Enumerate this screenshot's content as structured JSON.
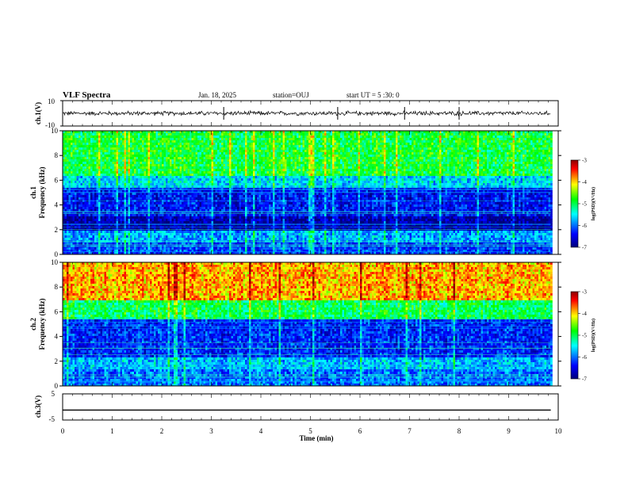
{
  "header": {
    "title": "VLF Spectra",
    "date": "Jan. 18, 2025",
    "station": "station=OUJ",
    "start": "start UT = 5 :30: 0"
  },
  "colors": {
    "spectrum_stops": [
      "#00007a",
      "#0000ff",
      "#00ffff",
      "#00ff00",
      "#ffff00",
      "#ff0000",
      "#8b0000"
    ],
    "trace": "#000000"
  },
  "chart_data": [
    {
      "type": "line",
      "name": "ch1-waveform",
      "ylabel": "ch.1(V)",
      "ylim": [
        -10,
        10
      ],
      "y_ticks": [
        "10",
        "-10"
      ],
      "description_values": {
        "baseline": 0,
        "noise_amplitude": 1.5,
        "spike_times_min": [
          3.25,
          5.55,
          6.9,
          8.0
        ]
      }
    },
    {
      "type": "heatmap",
      "name": "ch1-spectrogram",
      "ylabel_line1": "ch.1",
      "ylabel_line2": "Frequency (kHz)",
      "ylim": [
        0,
        10
      ],
      "y_ticks": [
        "0",
        "2",
        "4",
        "6",
        "8",
        "10"
      ],
      "xlim": [
        0,
        10
      ],
      "bands_kHz": [
        {
          "from": 0.0,
          "to": 1.0,
          "level": -6.2
        },
        {
          "from": 1.0,
          "to": 2.0,
          "level": -5.8
        },
        {
          "from": 2.0,
          "to": 3.2,
          "level": -6.8
        },
        {
          "from": 3.2,
          "to": 5.5,
          "level": -6.4
        },
        {
          "from": 5.5,
          "to": 6.5,
          "level": -5.6
        },
        {
          "from": 6.5,
          "to": 10.0,
          "level": -4.9
        }
      ],
      "colorbar": {
        "label": "log(PSD)(V²/Hz)",
        "ticks": [
          "-3",
          "-4",
          "-5",
          "-6",
          "-7"
        ],
        "range": [
          -7,
          -3
        ]
      }
    },
    {
      "type": "heatmap",
      "name": "ch2-spectrogram",
      "ylabel_line1": "ch.2",
      "ylabel_line2": "Frequency (kHz)",
      "ylim": [
        0,
        10
      ],
      "y_ticks": [
        "0",
        "2",
        "4",
        "6",
        "8",
        "10"
      ],
      "xlim": [
        0,
        10
      ],
      "bands_kHz": [
        {
          "from": 0.0,
          "to": 1.5,
          "level": -6.0
        },
        {
          "from": 1.5,
          "to": 2.5,
          "level": -5.7
        },
        {
          "from": 2.5,
          "to": 5.5,
          "level": -6.3
        },
        {
          "from": 5.5,
          "to": 7.0,
          "level": -5.0
        },
        {
          "from": 7.0,
          "to": 10.0,
          "level": -3.9
        }
      ],
      "colorbar": {
        "label": "log(PSD)(V²/Hz)",
        "ticks": [
          "-3",
          "-4",
          "-5",
          "-6",
          "-7"
        ],
        "range": [
          -7,
          -3
        ]
      }
    },
    {
      "type": "line",
      "name": "ch3-waveform",
      "ylabel": "ch.3(V)",
      "ylim": [
        -5,
        5
      ],
      "y_ticks": [
        "5",
        "-5"
      ],
      "x": [
        0,
        9.85
      ],
      "y": [
        -1.2,
        -1.2
      ]
    }
  ],
  "xaxis": {
    "label": "Time (min)",
    "ticks": [
      "0",
      "1",
      "2",
      "3",
      "4",
      "5",
      "6",
      "7",
      "8",
      "9",
      "10"
    ],
    "range": [
      0,
      10
    ],
    "data_end": 9.85
  }
}
